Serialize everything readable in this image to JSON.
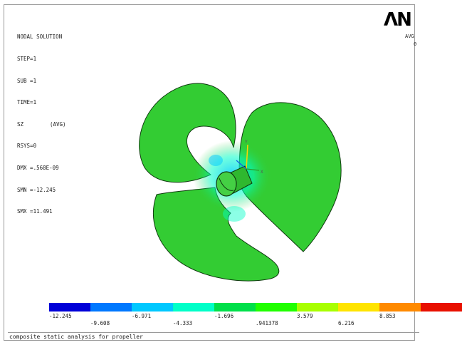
{
  "info": {
    "title": "NODAL SOLUTION",
    "step": "STEP=1",
    "sub": "SUB =1",
    "time": "TIME=1",
    "quantity": "SZ",
    "avg": "(AVG)",
    "rsys": "RSYS=0",
    "dmx": "DMX =.568E-09",
    "smn": "SMN =-12.245",
    "smx": "SMX =11.491"
  },
  "logo": "ΛN",
  "legend_avg": "AVG",
  "legend_zero": "0",
  "colors": {
    "blade": "#33cc33",
    "blade_edge": "#0f3a0f",
    "colorbar": [
      "#0000d8",
      "#0078ff",
      "#00c8ff",
      "#00ffc8",
      "#00e04a",
      "#20ff00",
      "#a8ff00",
      "#ffe400",
      "#ff8a00",
      "#e81000"
    ]
  },
  "colorbar_ticks_top": [
    "-12.245",
    "-6.971",
    "-1.696",
    "3.579",
    "8.853"
  ],
  "colorbar_ticks_bottom": [
    "-9.608",
    "-4.333",
    ".941378",
    "6.216"
  ],
  "caption": "composite static analysis for propeller"
}
